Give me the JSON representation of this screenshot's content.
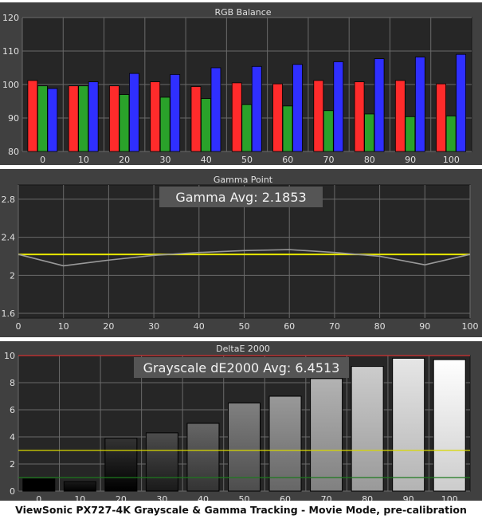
{
  "caption": "ViewSonic PX727-4K Grayscale & Gamma Tracking - Movie Mode, pre-calibration",
  "colors": {
    "panel_bg": "#404040",
    "plot_bg": "#262626",
    "grid": "#6a6a6a",
    "red": "#ff2b2b",
    "green": "#2aa22a",
    "blue": "#2f2fff",
    "gamma_target": "#e8e800",
    "gamma_measured": "#9a9a9a",
    "de_yellow": "#d8d800",
    "de_green": "#1e7a1e",
    "de_red": "#d03030"
  },
  "chart_data": [
    {
      "type": "bar",
      "title": "RGB Balance",
      "categories": [
        "0",
        "10",
        "20",
        "30",
        "40",
        "50",
        "60",
        "70",
        "80",
        "90",
        "100"
      ],
      "series": [
        {
          "name": "Red",
          "values": [
            101.2,
            99.6,
            99.6,
            100.8,
            99.4,
            100.5,
            100.2,
            101.2,
            100.8,
            101.2,
            100.2
          ]
        },
        {
          "name": "Green",
          "values": [
            99.6,
            99.6,
            97.0,
            96.2,
            95.8,
            94.0,
            93.6,
            92.2,
            91.2,
            90.4,
            90.6
          ]
        },
        {
          "name": "Blue",
          "values": [
            98.8,
            100.8,
            103.3,
            103.0,
            105.0,
            105.4,
            106.0,
            106.8,
            107.7,
            108.2,
            109.0
          ]
        }
      ],
      "ylim": [
        80,
        120
      ],
      "yticks": [
        "80",
        "90",
        "100",
        "110",
        "120"
      ]
    },
    {
      "type": "line",
      "title": "Gamma Point",
      "annotation": "Gamma Avg: 2.1853",
      "x": [
        0,
        10,
        20,
        30,
        40,
        50,
        60,
        70,
        80,
        90,
        100
      ],
      "xticks": [
        "0",
        "10",
        "20",
        "30",
        "40",
        "50",
        "60",
        "70",
        "80",
        "90",
        "100"
      ],
      "series": [
        {
          "values": [
            2.22,
            2.22,
            2.22,
            2.22,
            2.22,
            2.22,
            2.22,
            2.22,
            2.22,
            2.22,
            2.22
          ]
        },
        {
          "values": [
            2.22,
            2.1,
            2.16,
            2.21,
            2.24,
            2.26,
            2.27,
            2.24,
            2.2,
            2.11,
            2.22
          ]
        }
      ],
      "ylim": [
        1.55,
        2.95
      ],
      "yticks": [
        "1.6",
        "2",
        "2.4",
        "2.8"
      ],
      "ytick_values": [
        1.6,
        2.0,
        2.4,
        2.8
      ],
      "xlim": [
        0,
        100
      ]
    },
    {
      "type": "bar",
      "title": "DeltaE 2000",
      "annotation": "Grayscale dE2000 Avg: 6.4513",
      "categories": [
        "0",
        "10",
        "20",
        "30",
        "40",
        "50",
        "60",
        "70",
        "80",
        "90",
        "100"
      ],
      "values": [
        0.9,
        0.7,
        3.9,
        4.3,
        5.0,
        6.5,
        7.0,
        8.3,
        9.2,
        9.8,
        9.7
      ],
      "bar_colors": [
        "#000000",
        "#1a1a1a",
        "#333333",
        "#4d4d4d",
        "#666666",
        "#808080",
        "#999999",
        "#b3b3b3",
        "#cccccc",
        "#e6e6e6",
        "#ffffff"
      ],
      "reference_lines": [
        1,
        3,
        10
      ],
      "ylim": [
        0,
        10
      ],
      "yticks": [
        "0",
        "2",
        "4",
        "6",
        "8",
        "10"
      ]
    }
  ]
}
